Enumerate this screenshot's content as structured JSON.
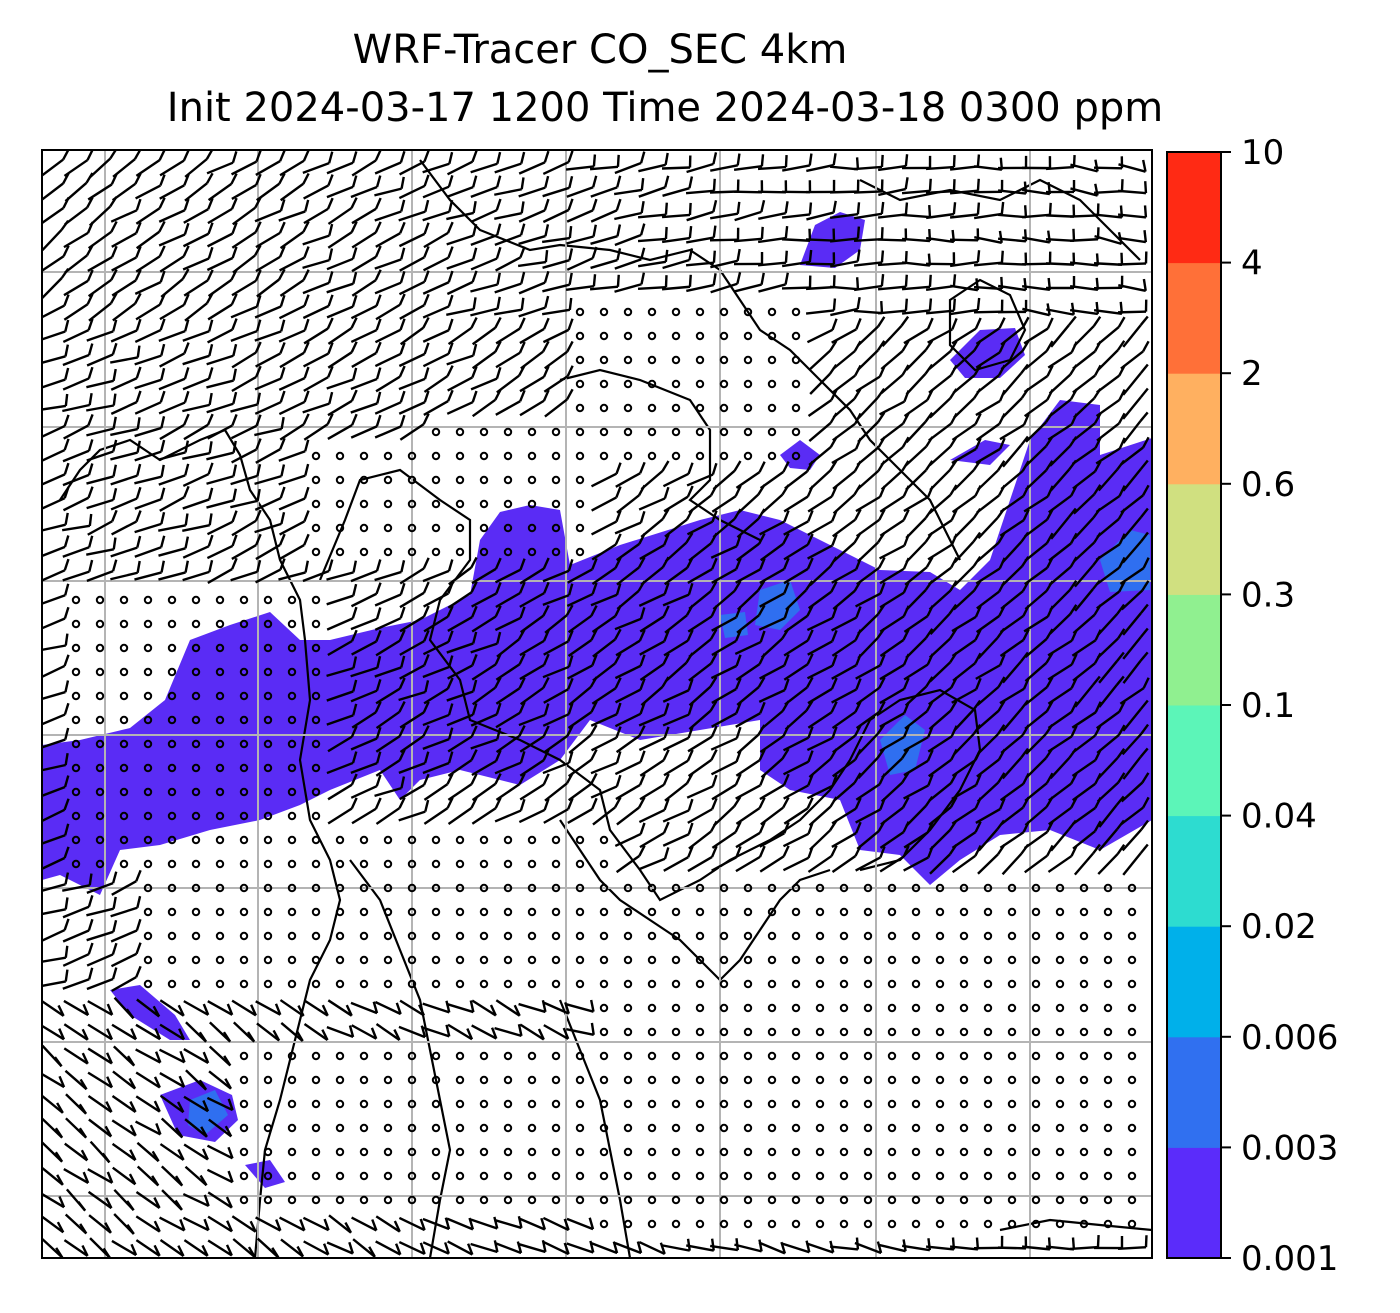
{
  "title": {
    "line1": "WRF-Tracer CO_SEC 4km",
    "line2": "Init 2024-03-17 1200 Time 2024-03-18 0300 ppm"
  },
  "map": {
    "contour_field": "CO_SEC tracer concentration",
    "grid_lines": true,
    "wind_barbs": true,
    "coastlines": true,
    "fill_color_lowest_band": "#5a2cf5",
    "fill_color_second_band": "#2f6ff0"
  },
  "colorbar": {
    "levels": [
      "0.001",
      "0.003",
      "0.006",
      "0.02",
      "0.04",
      "0.1",
      "0.3",
      "0.6",
      "2",
      "4",
      "10"
    ],
    "colors": [
      "#5b2cfa",
      "#3070f0",
      "#00b0ea",
      "#2ddcd0",
      "#5cf5b8",
      "#90f090",
      "#d0e080",
      "#ffb060",
      "#ff7038",
      "#ff2a14"
    ]
  }
}
